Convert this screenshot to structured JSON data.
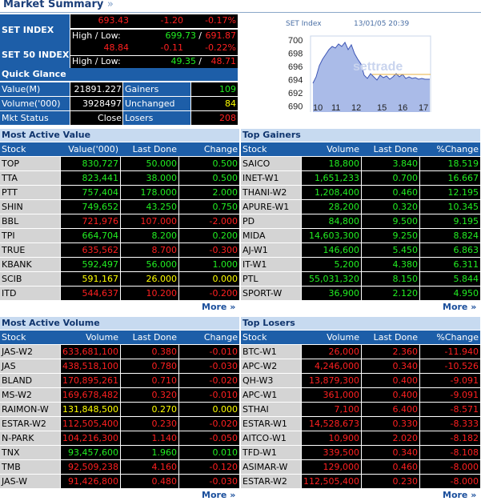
{
  "header": {
    "title": "Market Summary",
    "chevron": "»"
  },
  "indices": [
    {
      "label": "SET INDEX",
      "value": "693.43",
      "change": "-1.20",
      "pct": "-0.17%",
      "hl_label": "High / Low:",
      "high": "699.73",
      "low": "691.87",
      "sep": "/"
    },
    {
      "label": "SET 50 INDEX",
      "value": "48.84",
      "change": "-0.11",
      "pct": "-0.22%",
      "hl_label": "High / Low:",
      "high": "49.35",
      "low": "48.71",
      "sep": "/"
    }
  ],
  "quick_glance": {
    "title": "Quick Glance",
    "rows": [
      {
        "k": "Value(M)",
        "v": "21891.227",
        "k2": "Gainers",
        "v2": "109",
        "color": "green"
      },
      {
        "k": "Volume('000)",
        "v": "3928497",
        "k2": "Unchanged",
        "v2": "84",
        "color": "yellow"
      },
      {
        "k": "Mkt Status",
        "v": "Close",
        "k2": "Losers",
        "v2": "208",
        "color": "red"
      }
    ]
  },
  "mini_chart": {
    "title": "SET Index",
    "datetime": "13/01/05 20:39",
    "watermark": "settrade",
    "y_ticks": [
      "700",
      "698",
      "696",
      "694",
      "692",
      "690"
    ],
    "x_ticks": [
      "10",
      "11",
      "12",
      "15",
      "16",
      "17"
    ],
    "colors": {
      "area": "#aabbe8",
      "line": "#3d55b5",
      "ref": "#e8b040"
    }
  },
  "colors": {
    "red": "#ff2020",
    "green": "#22ee22",
    "yellow": "#ffff00"
  },
  "more_label": "More »",
  "most_active_value": {
    "title": "Most Active Value",
    "headers": [
      "Stock",
      "Value('000)",
      "Last Done",
      "Change"
    ],
    "rows": [
      {
        "s": "TOP",
        "a": "830,727",
        "b": "50.000",
        "c": "0.500",
        "col": "green"
      },
      {
        "s": "TTA",
        "a": "823,441",
        "b": "38.000",
        "c": "0.500",
        "col": "green"
      },
      {
        "s": "PTT",
        "a": "757,404",
        "b": "178.000",
        "c": "2.000",
        "col": "green"
      },
      {
        "s": "SHIN",
        "a": "749,652",
        "b": "43.250",
        "c": "0.750",
        "col": "green"
      },
      {
        "s": "BBL",
        "a": "721,976",
        "b": "107.000",
        "c": "-2.000",
        "col": "red"
      },
      {
        "s": "TPI",
        "a": "664,704",
        "b": "8.200",
        "c": "0.200",
        "col": "green"
      },
      {
        "s": "TRUE",
        "a": "635,562",
        "b": "8.700",
        "c": "-0.300",
        "col": "red"
      },
      {
        "s": "KBANK",
        "a": "592,497",
        "b": "56.000",
        "c": "1.000",
        "col": "green"
      },
      {
        "s": "SCIB",
        "a": "591,167",
        "b": "26.000",
        "c": "0.000",
        "col": "yellow"
      },
      {
        "s": "ITD",
        "a": "544,637",
        "b": "10.200",
        "c": "-0.200",
        "col": "red"
      }
    ]
  },
  "top_gainers": {
    "title": "Top Gainers",
    "headers": [
      "Stock",
      "Volume",
      "Last Done",
      "%Change"
    ],
    "rows": [
      {
        "s": "SAICO",
        "a": "18,800",
        "b": "3.840",
        "c": "18.519",
        "col": "green"
      },
      {
        "s": "INET-W1",
        "a": "1,651,233",
        "b": "0.700",
        "c": "16.667",
        "col": "green"
      },
      {
        "s": "THANI-W2",
        "a": "1,208,400",
        "b": "0.460",
        "c": "12.195",
        "col": "green"
      },
      {
        "s": "APURE-W1",
        "a": "28,200",
        "b": "0.320",
        "c": "10.345",
        "col": "green"
      },
      {
        "s": "PD",
        "a": "84,800",
        "b": "9.500",
        "c": "9.195",
        "col": "green"
      },
      {
        "s": "MIDA",
        "a": "14,603,300",
        "b": "9.250",
        "c": "8.824",
        "col": "green"
      },
      {
        "s": "AJ-W1",
        "a": "146,600",
        "b": "5.450",
        "c": "6.863",
        "col": "green"
      },
      {
        "s": "IT-W1",
        "a": "5,200",
        "b": "4.380",
        "c": "6.311",
        "col": "green"
      },
      {
        "s": "PTL",
        "a": "55,031,320",
        "b": "8.150",
        "c": "5.844",
        "col": "green"
      },
      {
        "s": "SPORT-W",
        "a": "36,900",
        "b": "2.120",
        "c": "4.950",
        "col": "green"
      }
    ]
  },
  "most_active_volume": {
    "title": "Most Active Volume",
    "headers": [
      "Stock",
      "Volume",
      "Last Done",
      "Change"
    ],
    "rows": [
      {
        "s": "JAS-W2",
        "a": "633,681,100",
        "b": "0.380",
        "c": "-0.010",
        "col": "red"
      },
      {
        "s": "JAS",
        "a": "438,518,100",
        "b": "0.780",
        "c": "-0.030",
        "col": "red"
      },
      {
        "s": "BLAND",
        "a": "170,895,261",
        "b": "0.710",
        "c": "-0.020",
        "col": "red"
      },
      {
        "s": "MS-W2",
        "a": "169,678,482",
        "b": "0.320",
        "c": "-0.010",
        "col": "red"
      },
      {
        "s": "RAIMON-W",
        "a": "131,848,500",
        "b": "0.270",
        "c": "0.000",
        "col": "yellow"
      },
      {
        "s": "ESTAR-W2",
        "a": "112,505,400",
        "b": "0.230",
        "c": "-0.020",
        "col": "red"
      },
      {
        "s": "N-PARK",
        "a": "104,216,300",
        "b": "1.140",
        "c": "-0.050",
        "col": "red"
      },
      {
        "s": "TNX",
        "a": "93,457,600",
        "b": "1.960",
        "c": "0.010",
        "col": "green"
      },
      {
        "s": "TMB",
        "a": "92,509,238",
        "b": "4.160",
        "c": "-0.120",
        "col": "red"
      },
      {
        "s": "JAS-W",
        "a": "91,426,800",
        "b": "0.480",
        "c": "-0.030",
        "col": "red"
      }
    ]
  },
  "top_losers": {
    "title": "Top Losers",
    "headers": [
      "Stock",
      "Volume",
      "Last Done",
      "%Change"
    ],
    "rows": [
      {
        "s": "BTC-W1",
        "a": "26,000",
        "b": "2.360",
        "c": "-11.940",
        "col": "red"
      },
      {
        "s": "APC-W2",
        "a": "4,246,000",
        "b": "0.340",
        "c": "-10.526",
        "col": "red"
      },
      {
        "s": "QH-W3",
        "a": "13,879,300",
        "b": "0.400",
        "c": "-9.091",
        "col": "red"
      },
      {
        "s": "APC-W1",
        "a": "361,000",
        "b": "0.400",
        "c": "-9.091",
        "col": "red"
      },
      {
        "s": "STHAI",
        "a": "7,100",
        "b": "6.400",
        "c": "-8.571",
        "col": "red"
      },
      {
        "s": "ESTAR-W1",
        "a": "14,528,673",
        "b": "0.330",
        "c": "-8.333",
        "col": "red"
      },
      {
        "s": "AITCO-W1",
        "a": "10,900",
        "b": "2.020",
        "c": "-8.182",
        "col": "red"
      },
      {
        "s": "TFD-W1",
        "a": "339,500",
        "b": "0.340",
        "c": "-8.108",
        "col": "red"
      },
      {
        "s": "ASIMAR-W",
        "a": "129,000",
        "b": "0.460",
        "c": "-8.000",
        "col": "red"
      },
      {
        "s": "ESTAR-W2",
        "a": "112,505,400",
        "b": "0.230",
        "c": "-8.000",
        "col": "red"
      }
    ]
  }
}
